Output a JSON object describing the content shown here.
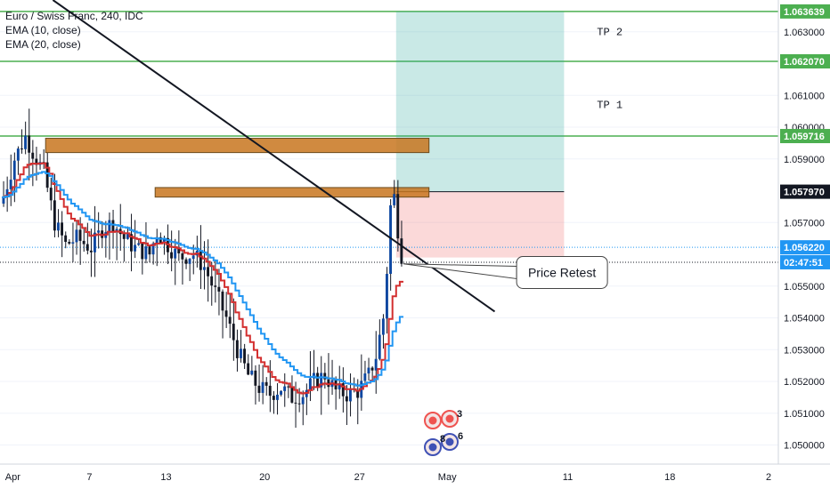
{
  "legend": {
    "symbol": "Euro / Swiss Franc, 240, IDC",
    "ema10": "EMA (10, close)",
    "ema20": "EMA (20, close)"
  },
  "chart_data": {
    "type": "candlestick",
    "title": "Euro / Swiss Franc, 240, IDC",
    "ylim": [
      1.0494,
      1.064
    ],
    "y_ticks": [
      "1.063000",
      "1.061000",
      "1.060000",
      "1.059000",
      "1.057000",
      "1.055000",
      "1.054000",
      "1.053000",
      "1.052000",
      "1.051000",
      "1.050000"
    ],
    "y_tick_values": [
      1.063,
      1.061,
      1.06,
      1.059,
      1.057,
      1.055,
      1.054,
      1.053,
      1.052,
      1.051,
      1.05
    ],
    "x_ticks": [
      "Apr",
      "7",
      "13",
      "20",
      "27",
      "May",
      "11",
      "18",
      "2"
    ],
    "x_tick_bars": [
      3,
      24,
      45,
      72,
      98,
      122,
      155,
      183,
      210
    ],
    "series": [
      {
        "name": "EMA (10, close)",
        "color": "#d32f2f"
      },
      {
        "name": "EMA (20, close)",
        "color": "#2196f3"
      }
    ],
    "price_tags": [
      {
        "label": "1.063639",
        "value": 1.06364,
        "style": "green"
      },
      {
        "label": "1.062070",
        "value": 1.06207,
        "style": "green"
      },
      {
        "label": "1.059716",
        "value": 1.05972,
        "style": "green"
      },
      {
        "label": "1.057970",
        "value": 1.05797,
        "style": "black"
      },
      {
        "label": "1.056220",
        "value": 1.05622,
        "style": "blue"
      },
      {
        "label": "02:47:51",
        "value": 1.05575,
        "style": "blue"
      }
    ],
    "horizontal_lines": [
      {
        "value": 1.06364,
        "color": "#4caf50"
      },
      {
        "value": 1.06207,
        "color": "#4caf50"
      },
      {
        "value": 1.05972,
        "color": "#4caf50"
      }
    ],
    "annotations": {
      "tp2": "TP 2",
      "tp1": "TP 1",
      "price_retest": "Price Retest"
    },
    "resistance_zones": [
      {
        "from_bar": 12,
        "to_bar": 117,
        "low": 1.0592,
        "high": 1.05965
      },
      {
        "from_bar": 42,
        "to_bar": 117,
        "low": 1.0578,
        "high": 1.0581
      }
    ],
    "position": {
      "entry": 1.05797,
      "stop": 1.0559,
      "target": 1.06364,
      "from_bar": 108,
      "to_bar": 154
    },
    "trendline": {
      "bar_a": 14,
      "price_a": 1.064,
      "bar_b": 135,
      "price_b": 1.0542
    },
    "badges": [
      {
        "label": "3",
        "color": "#ef5350"
      },
      {
        "label": "8",
        "color": "#3f51b5"
      },
      {
        "label": "6",
        "color": "#3f51b5"
      }
    ],
    "candles_count": 110
  },
  "colors": {
    "bull": "#0d47a1",
    "bear": "#131722",
    "green": "#4caf50",
    "orange": "#c8761f",
    "blue_line": "#2196f3"
  }
}
